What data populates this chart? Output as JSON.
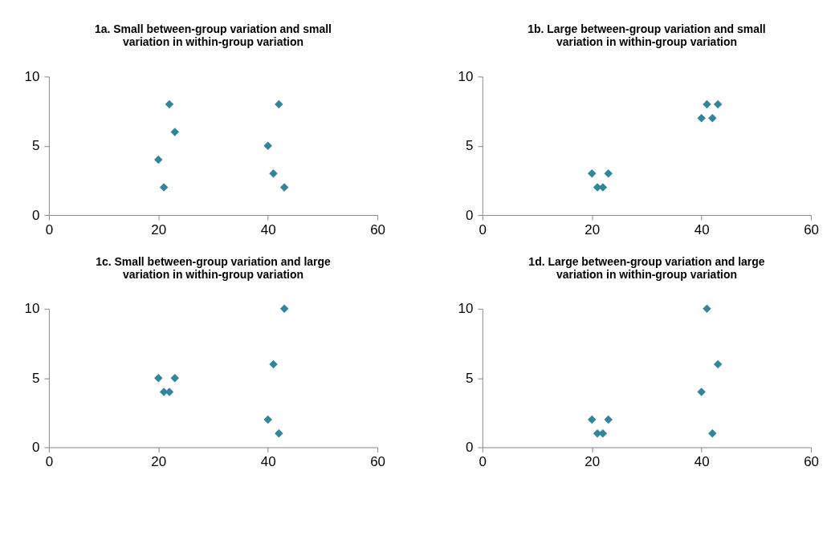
{
  "chart_data": [
    {
      "type": "scatter",
      "title": "1a. Small between-group variation and small variation in within-group variation",
      "x": [
        20,
        21,
        22,
        23,
        40,
        41,
        42,
        43
      ],
      "series": [
        {
          "color": "#31859c",
          "values": [
            4,
            2,
            8,
            6,
            5,
            3,
            8,
            2
          ]
        }
      ],
      "xlim": [
        0,
        60
      ],
      "xticks": [
        0,
        20,
        40,
        60
      ],
      "ylim": [
        0,
        10
      ],
      "yticks": [
        0,
        5,
        10
      ],
      "marker": "diamond",
      "grid": false
    },
    {
      "type": "scatter",
      "title": "1b. Large between-group variation and small variation in within-group variation",
      "x": [
        20,
        21,
        22,
        23,
        40,
        41,
        42,
        43
      ],
      "series": [
        {
          "color": "#31859c",
          "values": [
            3,
            2,
            2,
            3,
            7,
            8,
            7,
            8
          ]
        }
      ],
      "xlim": [
        0,
        60
      ],
      "xticks": [
        0,
        20,
        40,
        60
      ],
      "ylim": [
        0,
        10
      ],
      "yticks": [
        0,
        5,
        10
      ],
      "marker": "diamond",
      "grid": false
    },
    {
      "type": "scatter",
      "title": "1c. Small between-group variation and large variation in within-group variation",
      "x": [
        20,
        21,
        22,
        23,
        40,
        41,
        42,
        43
      ],
      "series": [
        {
          "color": "#31859c",
          "values": [
            5,
            4,
            4,
            5,
            2,
            6,
            1,
            10
          ]
        }
      ],
      "xlim": [
        0,
        60
      ],
      "xticks": [
        0,
        20,
        40,
        60
      ],
      "ylim": [
        0,
        10
      ],
      "yticks": [
        0,
        5,
        10
      ],
      "marker": "diamond",
      "grid": false
    },
    {
      "type": "scatter",
      "title": "1d. Large between-group variation and large variation in within-group variation",
      "x": [
        20,
        21,
        22,
        23,
        40,
        41,
        42,
        43
      ],
      "series": [
        {
          "color": "#31859c",
          "values": [
            2,
            1,
            1,
            2,
            4,
            10,
            1,
            6
          ]
        }
      ],
      "xlim": [
        0,
        60
      ],
      "xticks": [
        0,
        20,
        40,
        60
      ],
      "ylim": [
        0,
        10
      ],
      "yticks": [
        0,
        5,
        10
      ],
      "marker": "diamond",
      "grid": false
    }
  ]
}
